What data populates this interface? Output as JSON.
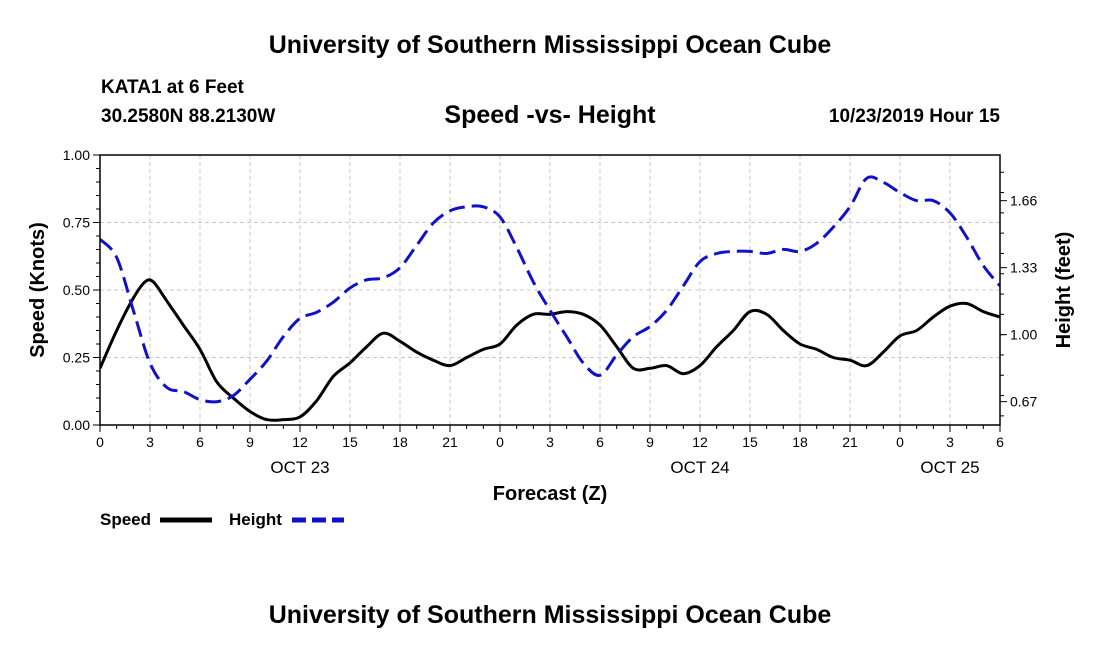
{
  "header": {
    "title_top": "University of Southern Mississippi Ocean Cube",
    "title_bottom": "University of Southern Mississippi Ocean Cube",
    "station": "KATA1 at 6 Feet",
    "coords": "30.2580N 88.2130W",
    "date": "10/23/2019 Hour 15"
  },
  "colors": {
    "speed": "#000000",
    "height": "#1111cc",
    "grid": "#c8c8c8"
  },
  "chart_data": {
    "type": "line",
    "title": "Speed -vs- Height",
    "xlabel": "Forecast (Z)",
    "ylabel": "Speed (Knots)",
    "y2label": "Height (feet)",
    "xlim": [
      0,
      54
    ],
    "ylim": [
      0,
      1
    ],
    "y2lim": [
      0.555,
      1.885
    ],
    "grid": true,
    "x_ticks": [
      0,
      3,
      6,
      9,
      12,
      15,
      18,
      21,
      24,
      27,
      30,
      33,
      36,
      39,
      42,
      45,
      48,
      51,
      54
    ],
    "x_tick_labels": [
      "0",
      "3",
      "6",
      "9",
      "12",
      "15",
      "18",
      "21",
      "0",
      "3",
      "6",
      "9",
      "12",
      "15",
      "18",
      "21",
      "0",
      "3",
      "6"
    ],
    "y_ticks": [
      "0.00",
      "0.25",
      "0.50",
      "0.75",
      "1.00"
    ],
    "y2_ticks": [
      "0.67",
      "1.00",
      "1.33",
      "1.66"
    ],
    "date_labels": [
      {
        "x": 12,
        "label": "OCT 23"
      },
      {
        "x": 36,
        "label": "OCT 24"
      },
      {
        "x": 51,
        "label": "OCT 25"
      }
    ],
    "series": [
      {
        "name": "Speed",
        "axis": "left",
        "style": "solid",
        "x": [
          0,
          1,
          2,
          2.7,
          3.2,
          4,
          5,
          6,
          7,
          8,
          9,
          10,
          11,
          12,
          13,
          14,
          15,
          16,
          17,
          18,
          19,
          20,
          21,
          22,
          23,
          24,
          25,
          26,
          27,
          28,
          29,
          30,
          31,
          32,
          33,
          34,
          35,
          36,
          37,
          38,
          39,
          40,
          41,
          42,
          43,
          44,
          45,
          46,
          47,
          48,
          49,
          50,
          51,
          52,
          53,
          54
        ],
        "values": [
          0.21,
          0.35,
          0.47,
          0.53,
          0.53,
          0.46,
          0.37,
          0.28,
          0.16,
          0.1,
          0.05,
          0.02,
          0.02,
          0.03,
          0.09,
          0.18,
          0.23,
          0.29,
          0.34,
          0.31,
          0.27,
          0.24,
          0.22,
          0.25,
          0.28,
          0.3,
          0.37,
          0.41,
          0.41,
          0.42,
          0.41,
          0.37,
          0.29,
          0.21,
          0.21,
          0.22,
          0.19,
          0.22,
          0.29,
          0.35,
          0.42,
          0.41,
          0.35,
          0.3,
          0.28,
          0.25,
          0.24,
          0.22,
          0.27,
          0.33,
          0.35,
          0.4,
          0.44,
          0.45,
          0.42,
          0.4
        ]
      },
      {
        "name": "Height",
        "axis": "right",
        "style": "dashed",
        "x": [
          0,
          1,
          2,
          3,
          4,
          5,
          6,
          7,
          8,
          9,
          10,
          11,
          12,
          13,
          14,
          15,
          16,
          17,
          18,
          19,
          20,
          21,
          22,
          23,
          24,
          25,
          26,
          27,
          28,
          29,
          30,
          31,
          32,
          33,
          34,
          35,
          36,
          37,
          38,
          39,
          40,
          41,
          42,
          43,
          44,
          45,
          46,
          47,
          48,
          49,
          50,
          51,
          52,
          53,
          54
        ],
        "values": [
          1.47,
          1.38,
          1.12,
          0.86,
          0.74,
          0.72,
          0.68,
          0.67,
          0.7,
          0.78,
          0.87,
          0.99,
          1.08,
          1.11,
          1.16,
          1.23,
          1.27,
          1.28,
          1.33,
          1.44,
          1.55,
          1.61,
          1.63,
          1.63,
          1.58,
          1.43,
          1.26,
          1.12,
          0.99,
          0.86,
          0.8,
          0.9,
          0.99,
          1.04,
          1.12,
          1.24,
          1.36,
          1.4,
          1.41,
          1.41,
          1.4,
          1.42,
          1.41,
          1.45,
          1.53,
          1.63,
          1.77,
          1.75,
          1.7,
          1.66,
          1.66,
          1.6,
          1.48,
          1.34,
          1.24
        ]
      }
    ]
  }
}
